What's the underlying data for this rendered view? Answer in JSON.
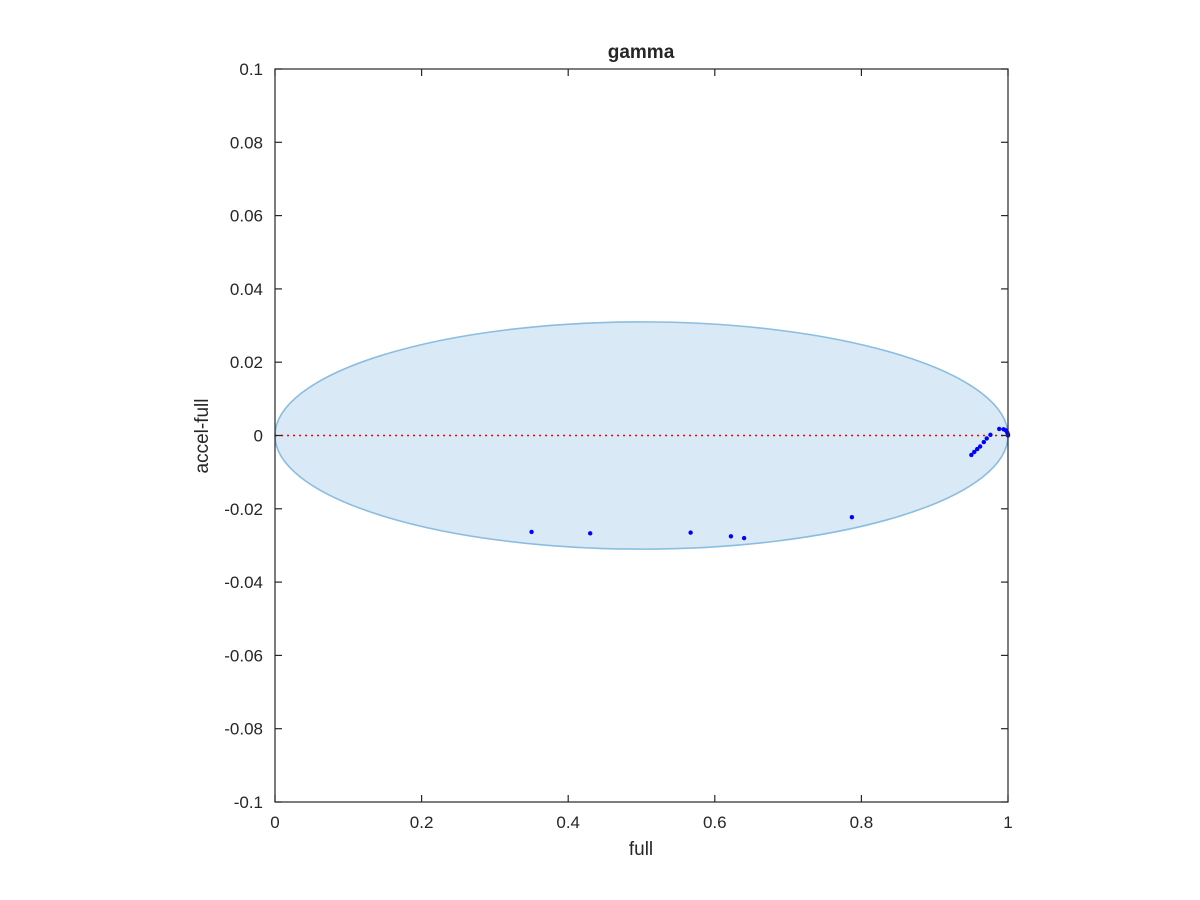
{
  "chart_data": {
    "type": "scatter",
    "title": "gamma",
    "xlabel": "full",
    "ylabel": "accel-full",
    "xlim": [
      0,
      1
    ],
    "ylim": [
      -0.1,
      0.1
    ],
    "x_ticks": [
      "0",
      "0.2",
      "0.4",
      "0.6",
      "0.8",
      "1"
    ],
    "y_ticks": [
      "0.1",
      "0.08",
      "0.06",
      "0.04",
      "0.02",
      "0",
      "-0.02",
      "-0.04",
      "-0.06",
      "-0.08",
      "-0.1"
    ],
    "x_tick_values": [
      0,
      0.2,
      0.4,
      0.6,
      0.8,
      1
    ],
    "y_tick_values": [
      0.1,
      0.08,
      0.06,
      0.04,
      0.02,
      0,
      -0.02,
      -0.04,
      -0.06,
      -0.08,
      -0.1
    ],
    "grid": false,
    "ellipse": {
      "center": [
        0.5,
        0
      ],
      "semi_axes": [
        0.5,
        0.031
      ],
      "fill": "#d9e9f5",
      "edge": "#8bbde0"
    },
    "reference_line": {
      "y": 0,
      "style": "dotted",
      "color": "#ff0000"
    },
    "series": [
      {
        "color": "#0000ff",
        "points": [
          [
            0.35,
            -0.0263
          ],
          [
            0.43,
            -0.0267
          ],
          [
            0.567,
            -0.0265
          ],
          [
            0.622,
            -0.0275
          ],
          [
            0.64,
            -0.028
          ],
          [
            0.787,
            -0.0223
          ],
          [
            0.95,
            -0.0053
          ],
          [
            0.954,
            -0.0045
          ],
          [
            0.958,
            -0.0037
          ],
          [
            0.962,
            -0.003
          ],
          [
            0.967,
            -0.0018
          ],
          [
            0.971,
            -0.0008
          ],
          [
            0.976,
            0.0002
          ],
          [
            0.988,
            0.0018
          ],
          [
            0.994,
            0.0017
          ],
          [
            0.997,
            0.0014
          ],
          [
            0.999,
            0.0008
          ],
          [
            1.0,
            0.0003
          ],
          [
            1.0,
            0.0
          ]
        ]
      }
    ]
  }
}
